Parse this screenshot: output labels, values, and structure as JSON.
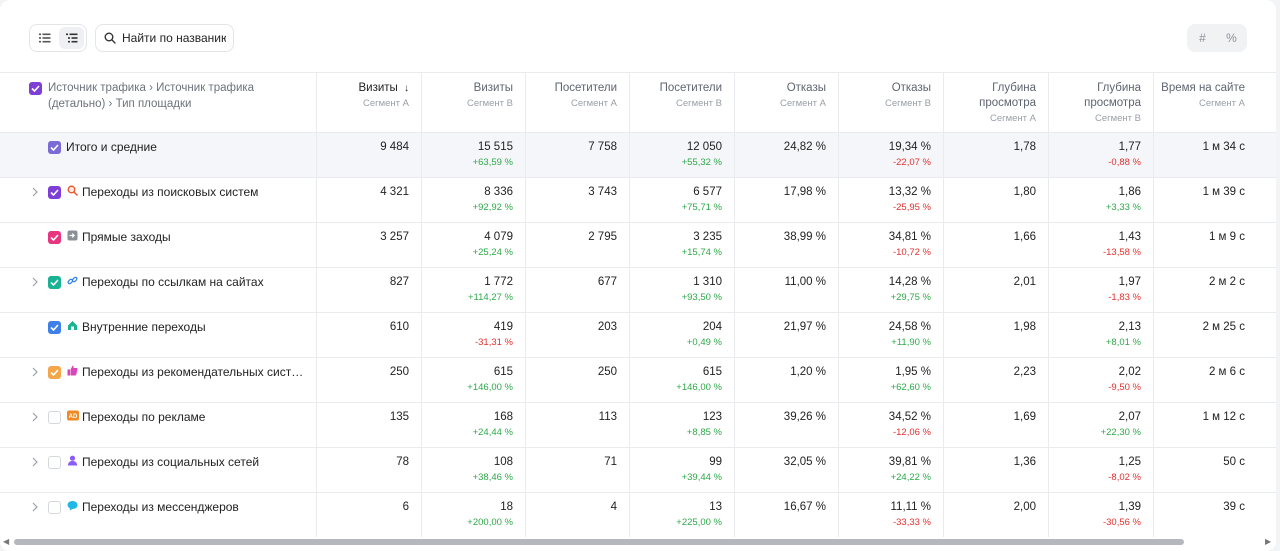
{
  "toolbar": {
    "search_placeholder": "Найти по названию",
    "mode_abs": "#",
    "mode_pct": "%"
  },
  "header": {
    "grouping_label": "Источник трафика › Источник трафика (детально) › Тип площадки",
    "columns": [
      {
        "title": "Визиты",
        "segment": "Сегмент А",
        "sort": "desc"
      },
      {
        "title": "Визиты",
        "segment": "Сегмент В"
      },
      {
        "title": "Посетители",
        "segment": "Сегмент А"
      },
      {
        "title": "Посетители",
        "segment": "Сегмент В"
      },
      {
        "title": "Отказы",
        "segment": "Сегмент А"
      },
      {
        "title": "Отказы",
        "segment": "Сегмент В"
      },
      {
        "title": "Глубина просмотра",
        "segment": "Сегмент А"
      },
      {
        "title": "Глубина просмотра",
        "segment": "Сегмент В"
      },
      {
        "title": "Время на сайте",
        "segment": "Сегмент А"
      }
    ]
  },
  "rows": [
    {
      "label": "Итого и средние",
      "expandable": false,
      "checked": true,
      "checkbox_color": "#7b6bd6",
      "icon": "",
      "visits_a": "9 484",
      "visits_b": "15 515",
      "visits_delta": "+63,59 %",
      "visitors_a": "7 758",
      "visitors_b": "12 050",
      "visitors_delta": "+55,32 %",
      "bounce_a": "24,82 %",
      "bounce_b": "19,34 %",
      "bounce_delta": "-22,07 %",
      "depth_a": "1,78",
      "depth_b": "1,77",
      "depth_delta": "-0,88 %",
      "time_a": "1 м 34 с"
    },
    {
      "label": "Переходы из поисковых систем",
      "expandable": true,
      "checked": true,
      "checkbox_color": "#7e3fd6",
      "icon": "search-glass-icon",
      "visits_a": "4 321",
      "visits_b": "8 336",
      "visits_delta": "+92,92 %",
      "visitors_a": "3 743",
      "visitors_b": "6 577",
      "visitors_delta": "+75,71 %",
      "bounce_a": "17,98 %",
      "bounce_b": "13,32 %",
      "bounce_delta": "-25,95 %",
      "depth_a": "1,80",
      "depth_b": "1,86",
      "depth_delta": "+3,33 %",
      "time_a": "1 м 39 с"
    },
    {
      "label": "Прямые заходы",
      "expandable": false,
      "checked": true,
      "checkbox_color": "#e8357f",
      "icon": "enter-door-icon",
      "visits_a": "3 257",
      "visits_b": "4 079",
      "visits_delta": "+25,24 %",
      "visitors_a": "2 795",
      "visitors_b": "3 235",
      "visitors_delta": "+15,74 %",
      "bounce_a": "38,99 %",
      "bounce_b": "34,81 %",
      "bounce_delta": "-10,72 %",
      "depth_a": "1,66",
      "depth_b": "1,43",
      "depth_delta": "-13,58 %",
      "time_a": "1 м 9 с"
    },
    {
      "label": "Переходы по ссылкам на сайтах",
      "expandable": true,
      "checked": true,
      "checkbox_color": "#19b394",
      "icon": "link-icon",
      "visits_a": "827",
      "visits_b": "1 772",
      "visits_delta": "+114,27 %",
      "visitors_a": "677",
      "visitors_b": "1 310",
      "visitors_delta": "+93,50 %",
      "bounce_a": "11,00 %",
      "bounce_b": "14,28 %",
      "bounce_delta": "+29,75 %",
      "depth_a": "2,01",
      "depth_b": "1,97",
      "depth_delta": "-1,83 %",
      "time_a": "2 м 2 с"
    },
    {
      "label": "Внутренние переходы",
      "expandable": false,
      "checked": true,
      "checkbox_color": "#3f7fe8",
      "icon": "home-icon",
      "visits_a": "610",
      "visits_b": "419",
      "visits_delta": "-31,31 %",
      "visitors_a": "203",
      "visitors_b": "204",
      "visitors_delta": "+0,49 %",
      "bounce_a": "21,97 %",
      "bounce_b": "24,58 %",
      "bounce_delta": "+11,90 %",
      "depth_a": "1,98",
      "depth_b": "2,13",
      "depth_delta": "+8,01 %",
      "time_a": "2 м 25 с"
    },
    {
      "label": "Переходы из рекомендательных сист…",
      "expandable": true,
      "checked": true,
      "checkbox_color": "#f3a64a",
      "icon": "thumbs-up-icon",
      "visits_a": "250",
      "visits_b": "615",
      "visits_delta": "+146,00 %",
      "visitors_a": "250",
      "visitors_b": "615",
      "visitors_delta": "+146,00 %",
      "bounce_a": "1,20 %",
      "bounce_b": "1,95 %",
      "bounce_delta": "+62,60 %",
      "depth_a": "2,23",
      "depth_b": "2,02",
      "depth_delta": "-9,50 %",
      "time_a": "2 м 6 с"
    },
    {
      "label": "Переходы по рекламе",
      "expandable": true,
      "checked": false,
      "checkbox_color": "",
      "icon": "ad-badge-icon",
      "visits_a": "135",
      "visits_b": "168",
      "visits_delta": "+24,44 %",
      "visitors_a": "113",
      "visitors_b": "123",
      "visitors_delta": "+8,85 %",
      "bounce_a": "39,26 %",
      "bounce_b": "34,52 %",
      "bounce_delta": "-12,06 %",
      "depth_a": "1,69",
      "depth_b": "2,07",
      "depth_delta": "+22,30 %",
      "time_a": "1 м 12 с"
    },
    {
      "label": "Переходы из социальных сетей",
      "expandable": true,
      "checked": false,
      "checkbox_color": "",
      "icon": "person-icon",
      "visits_a": "78",
      "visits_b": "108",
      "visits_delta": "+38,46 %",
      "visitors_a": "71",
      "visitors_b": "99",
      "visitors_delta": "+39,44 %",
      "bounce_a": "32,05 %",
      "bounce_b": "39,81 %",
      "bounce_delta": "+24,22 %",
      "depth_a": "1,36",
      "depth_b": "1,25",
      "depth_delta": "-8,02 %",
      "time_a": "50 с"
    },
    {
      "label": "Переходы из мессенджеров",
      "expandable": true,
      "checked": false,
      "checkbox_color": "",
      "icon": "chat-bubble-icon",
      "visits_a": "6",
      "visits_b": "18",
      "visits_delta": "+200,00 %",
      "visitors_a": "4",
      "visitors_b": "13",
      "visitors_delta": "+225,00 %",
      "bounce_a": "16,67 %",
      "bounce_b": "11,11 %",
      "bounce_delta": "-33,33 %",
      "depth_a": "2,00",
      "depth_b": "1,39",
      "depth_delta": "-30,56 %",
      "time_a": "39 с"
    }
  ]
}
